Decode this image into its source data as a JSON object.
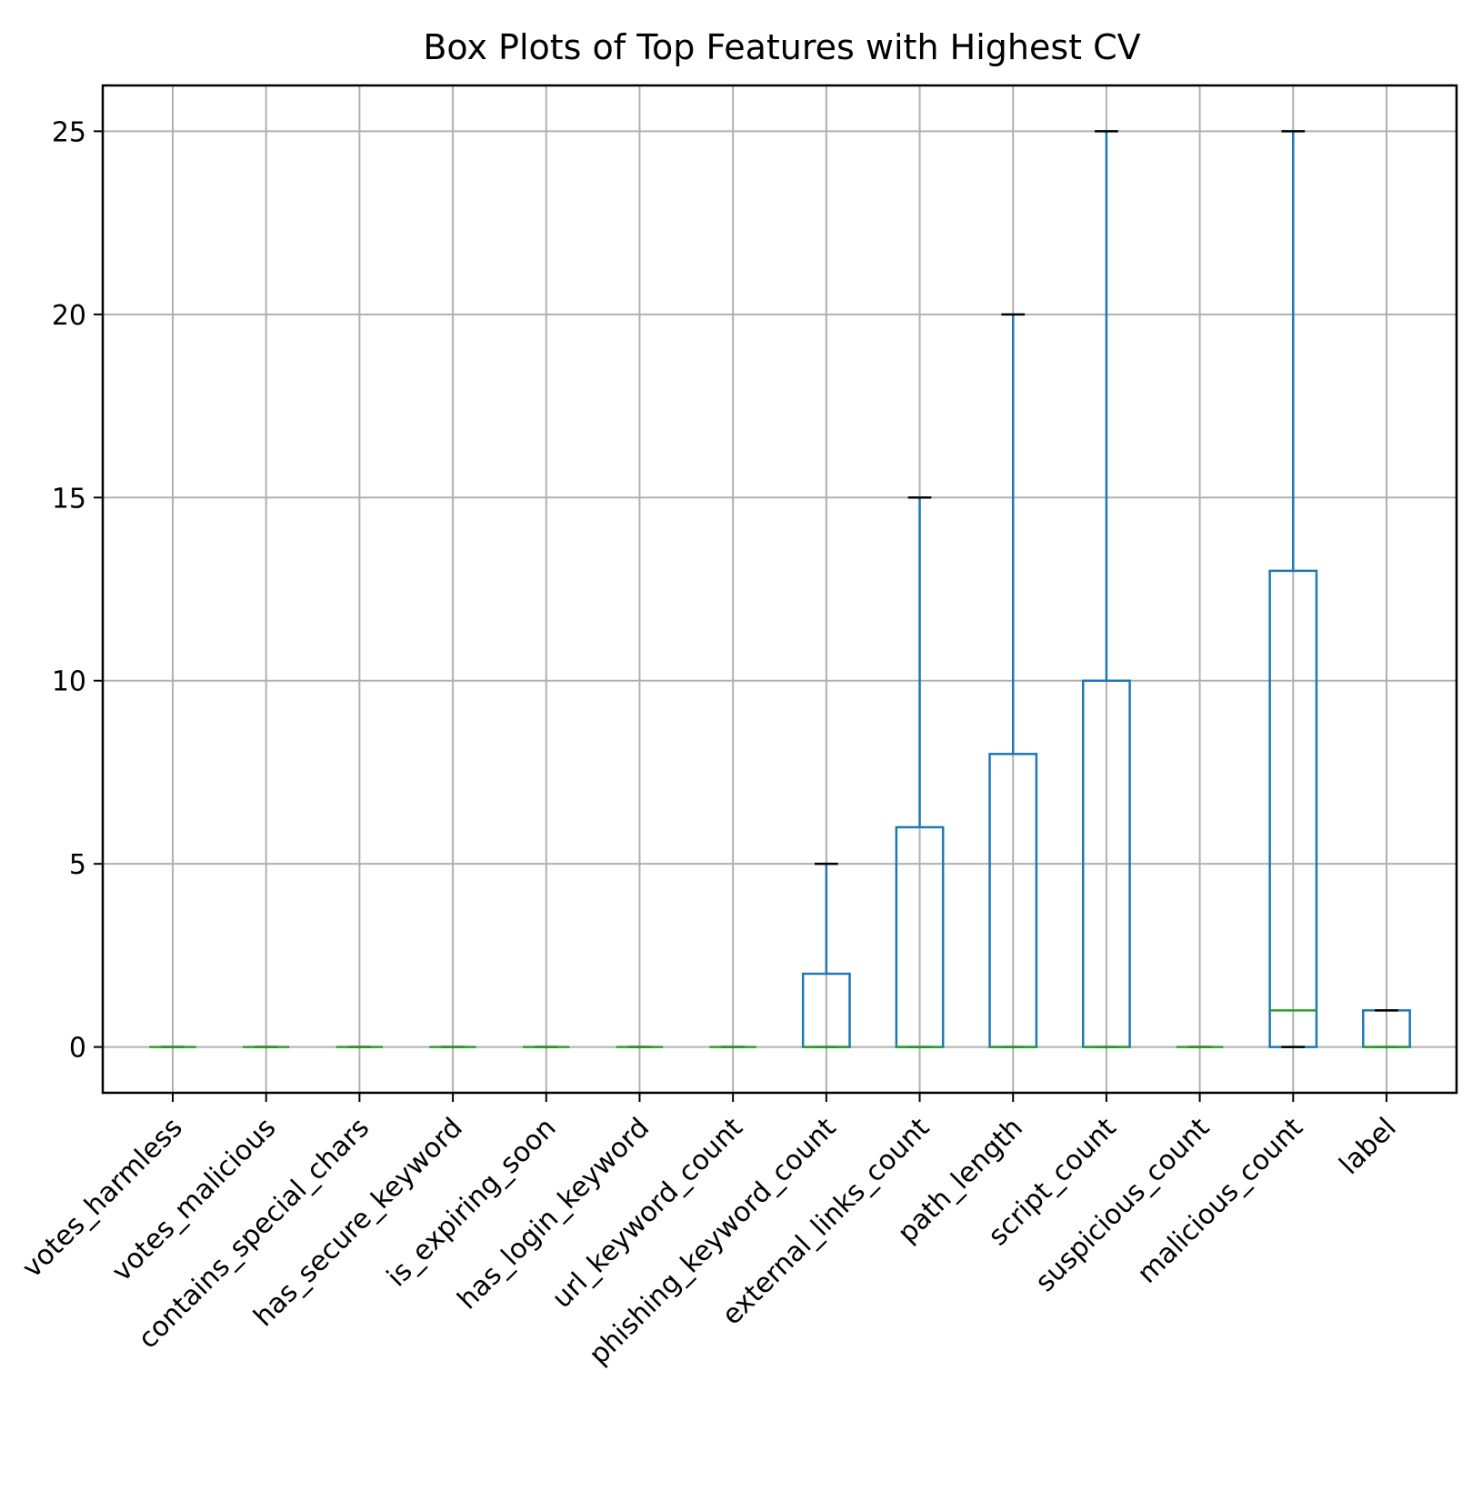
{
  "chart_data": {
    "type": "box",
    "title": "Box Plots of Top Features with Highest CV",
    "xlabel": "",
    "ylabel": "",
    "ylim": [
      -1.25,
      26.25
    ],
    "yticks": [
      0,
      5,
      10,
      15,
      20,
      25
    ],
    "grid": true,
    "colors": {
      "box": "#1f77b4",
      "median": "#2ca02c",
      "caps": "#000000",
      "grid": "#b0b0b0"
    },
    "categories": [
      "votes_harmless",
      "votes_malicious",
      "contains_special_chars",
      "has_secure_keyword",
      "is_expiring_soon",
      "has_login_keyword",
      "url_keyword_count",
      "phishing_keyword_count",
      "external_links_count",
      "path_length",
      "script_count",
      "suspicious_count",
      "malicious_count",
      "label"
    ],
    "boxes": [
      {
        "min": 0,
        "q1": 0,
        "median": 0,
        "q3": 0,
        "max": 0
      },
      {
        "min": 0,
        "q1": 0,
        "median": 0,
        "q3": 0,
        "max": 0
      },
      {
        "min": 0,
        "q1": 0,
        "median": 0,
        "q3": 0,
        "max": 0
      },
      {
        "min": 0,
        "q1": 0,
        "median": 0,
        "q3": 0,
        "max": 0
      },
      {
        "min": 0,
        "q1": 0,
        "median": 0,
        "q3": 0,
        "max": 0
      },
      {
        "min": 0,
        "q1": 0,
        "median": 0,
        "q3": 0,
        "max": 0
      },
      {
        "min": 0,
        "q1": 0,
        "median": 0,
        "q3": 0,
        "max": 0
      },
      {
        "min": 0,
        "q1": 0,
        "median": 0,
        "q3": 2,
        "max": 5
      },
      {
        "min": 0,
        "q1": 0,
        "median": 0,
        "q3": 6,
        "max": 15
      },
      {
        "min": 0,
        "q1": 0,
        "median": 0,
        "q3": 8,
        "max": 20
      },
      {
        "min": 0,
        "q1": 0,
        "median": 0,
        "q3": 10,
        "max": 25
      },
      {
        "min": 0,
        "q1": 0,
        "median": 0,
        "q3": 0,
        "max": 0
      },
      {
        "min": 0,
        "q1": 0,
        "median": 1,
        "q3": 13,
        "max": 25
      },
      {
        "min": 0,
        "q1": 0,
        "median": 0,
        "q3": 1,
        "max": 1
      }
    ]
  }
}
